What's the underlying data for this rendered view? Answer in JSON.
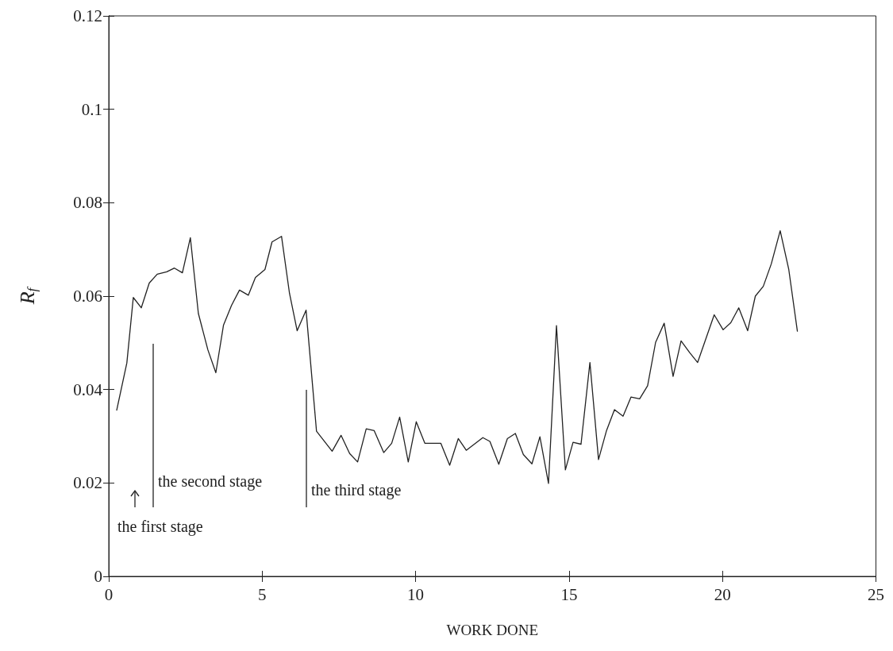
{
  "chart_data": {
    "type": "line",
    "xlabel": "WORK DONE",
    "ylabel": "R$_{f}$",
    "xlim": [
      0,
      25
    ],
    "xticks": [
      0,
      5,
      10,
      15,
      20,
      25
    ],
    "ylim": [
      0,
      0.12
    ],
    "yticks": [
      0,
      0.02,
      0.04,
      0.06,
      0.08,
      0.1,
      0.12
    ],
    "grid": false,
    "marker": "none",
    "line_style": "solid",
    "series": [
      {
        "color": "#222222",
        "x": [
          0.26,
          0.59,
          0.8,
          1.06,
          1.32,
          1.58,
          1.89,
          2.14,
          2.4,
          2.66,
          2.92,
          3.23,
          3.49,
          3.74,
          4.0,
          4.26,
          4.55,
          4.78,
          5.09,
          5.32,
          5.63,
          5.89,
          6.14,
          6.43,
          6.77,
          7.28,
          7.57,
          7.85,
          8.11,
          8.39,
          8.65,
          8.96,
          9.22,
          9.48,
          9.76,
          10.02,
          10.3,
          10.82,
          11.11,
          11.39,
          11.65,
          12.19,
          12.42,
          12.71,
          12.99,
          13.25,
          13.51,
          13.79,
          14.05,
          14.33,
          14.59,
          14.88,
          15.13,
          15.39,
          15.68,
          15.96,
          16.22,
          16.48,
          16.76,
          17.02,
          17.3,
          17.56,
          17.82,
          18.1,
          18.39,
          18.65,
          18.93,
          19.19,
          19.73,
          20.02,
          20.27,
          20.53,
          20.82,
          21.07,
          21.33,
          21.59,
          21.88,
          22.16,
          22.44
        ],
        "values": [
          0.0356,
          0.0457,
          0.0597,
          0.0575,
          0.0628,
          0.0647,
          0.0652,
          0.066,
          0.065,
          0.0725,
          0.0563,
          0.0485,
          0.0436,
          0.0538,
          0.058,
          0.0613,
          0.0602,
          0.064,
          0.0657,
          0.0716,
          0.0728,
          0.0606,
          0.0526,
          0.057,
          0.0311,
          0.0268,
          0.0302,
          0.0263,
          0.0245,
          0.0316,
          0.0312,
          0.0265,
          0.0285,
          0.0341,
          0.0245,
          0.0331,
          0.0285,
          0.0285,
          0.0238,
          0.0295,
          0.027,
          0.0297,
          0.0289,
          0.024,
          0.0295,
          0.0306,
          0.0261,
          0.0241,
          0.0299,
          0.0199,
          0.0537,
          0.0228,
          0.0287,
          0.0283,
          0.0458,
          0.025,
          0.0312,
          0.0357,
          0.0343,
          0.0384,
          0.038,
          0.0408,
          0.0501,
          0.0542,
          0.0428,
          0.0504,
          0.0479,
          0.0458,
          0.056,
          0.0528,
          0.0543,
          0.0575,
          0.0526,
          0.06,
          0.0621,
          0.0669,
          0.074,
          0.0657,
          0.0525
        ]
      }
    ],
    "annotations": [
      "the first stage",
      "the second stage",
      "the third stage"
    ]
  }
}
